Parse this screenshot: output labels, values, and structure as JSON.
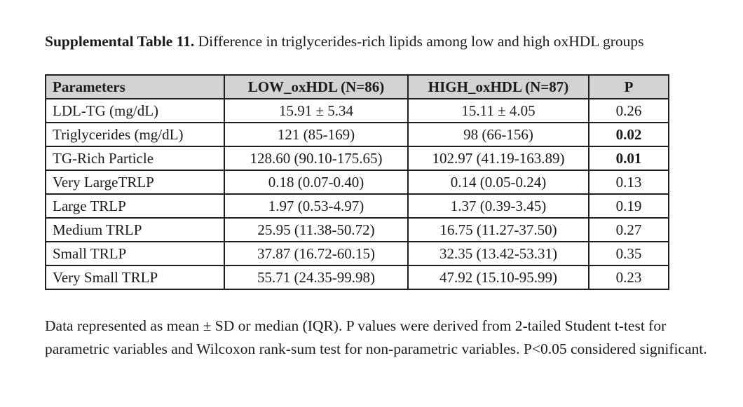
{
  "title": {
    "label_bold": "Supplemental Table 11.",
    "label_rest": " Difference in triglycerides-rich lipids among low and high oxHDL groups"
  },
  "table": {
    "header": [
      "Parameters",
      "LOW_oxHDL (N=86)",
      "HIGH_oxHDL (N=87)",
      "P"
    ],
    "rows": [
      {
        "parameter": "LDL-TG (mg/dL)",
        "low": "15.91 ± 5.34",
        "high": "15.11 ± 4.05",
        "p": "0.26",
        "p_bold": false
      },
      {
        "parameter": "Triglycerides (mg/dL)",
        "low": "121 (85-169)",
        "high": "98 (66-156)",
        "p": "0.02",
        "p_bold": true
      },
      {
        "parameter": "TG-Rich Particle",
        "low": "128.60 (90.10-175.65)",
        "high": "102.97 (41.19-163.89)",
        "p": "0.01",
        "p_bold": true
      },
      {
        "parameter": "Very LargeTRLP",
        "low": "0.18 (0.07-0.40)",
        "high": "0.14 (0.05-0.24)",
        "p": "0.13",
        "p_bold": false
      },
      {
        "parameter": "Large TRLP",
        "low": "1.97 (0.53-4.97)",
        "high": "1.37 (0.39-3.45)",
        "p": "0.19",
        "p_bold": false
      },
      {
        "parameter": "Medium TRLP",
        "low": "25.95 (11.38-50.72)",
        "high": "16.75 (11.27-37.50)",
        "p": "0.27",
        "p_bold": false
      },
      {
        "parameter": "Small TRLP",
        "low": "37.87 (16.72-60.15)",
        "high": "32.35 (13.42-53.31)",
        "p": "0.35",
        "p_bold": false
      },
      {
        "parameter": "Very Small TRLP",
        "low": "55.71 (24.35-99.98)",
        "high": "47.92 (15.10-95.99)",
        "p": "0.23",
        "p_bold": false
      }
    ]
  },
  "footnote": "Data represented as mean ± SD or median (IQR). P values were derived from 2-tailed Student t-test for parametric variables and Wilcoxon rank-sum test for non-parametric variables. P<0.05 considered significant.",
  "colors": {
    "header_bg": "#d3d3d3",
    "border": "#1f1f1f",
    "text": "#1b1b1b",
    "page_bg": "#ffffff"
  }
}
